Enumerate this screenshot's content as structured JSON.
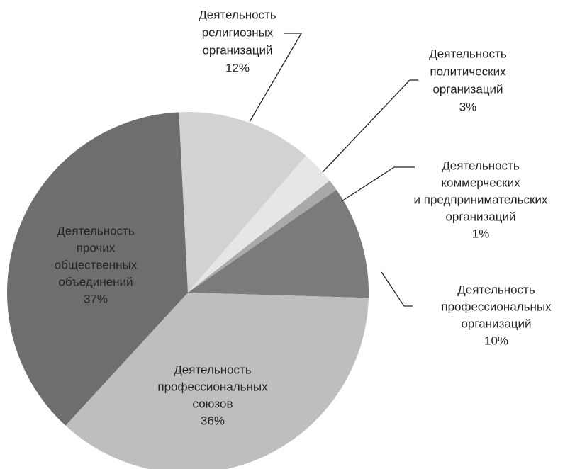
{
  "chart_data": {
    "type": "pie",
    "categories": [
      [
        "Деятельность",
        "религиозных",
        "организаций"
      ],
      [
        "Деятельность",
        "политических",
        "организаций"
      ],
      [
        "Деятельность",
        "коммерческих",
        "и предпринимательских",
        "организаций"
      ],
      [
        "Деятельность",
        "профессиональных",
        "организаций"
      ],
      [
        "Деятельность",
        "профессиональных",
        "союзов"
      ],
      [
        "Деятельность",
        "прочих",
        "общественных",
        "объединений"
      ]
    ],
    "values": [
      12,
      3,
      1,
      10,
      36,
      37
    ],
    "value_labels": [
      "12%",
      "3%",
      "1%",
      "10%",
      "36%",
      "37%"
    ],
    "colors": [
      "#d2d2d2",
      "#e6e6e6",
      "#a9a9a9",
      "#7b7b7c",
      "#bebebe",
      "#6e6e70"
    ]
  }
}
